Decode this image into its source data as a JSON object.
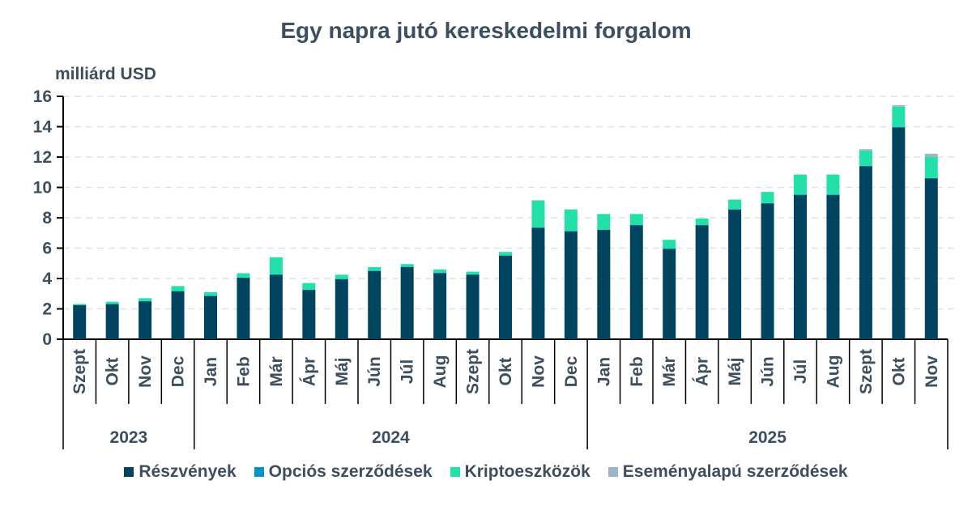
{
  "chart_data": {
    "type": "bar",
    "stacked": true,
    "title": "Egy napra jutó kereskedelmi forgalom",
    "ylabel": "milliárd USD",
    "ylim": [
      0,
      16
    ],
    "yticks": [
      0,
      2,
      4,
      6,
      8,
      10,
      12,
      14,
      16
    ],
    "grid": true,
    "legend_position": "bottom",
    "categories": [
      "Szept",
      "Okt",
      "Nov",
      "Dec",
      "Jan",
      "Feb",
      "Már",
      "Ápr",
      "Máj",
      "Jún",
      "Júl",
      "Aug",
      "Szept",
      "Okt",
      "Nov",
      "Dec",
      "Jan",
      "Feb",
      "Már",
      "Ápr",
      "Máj",
      "Jún",
      "Júl",
      "Aug",
      "Szept",
      "Okt",
      "Nov"
    ],
    "years": [
      {
        "label": "2023",
        "count": 4
      },
      {
        "label": "2024",
        "count": 12
      },
      {
        "label": "2025",
        "count": 11
      }
    ],
    "series": [
      {
        "name": "Részvények",
        "color": "#00445f",
        "values": [
          2.24,
          2.3,
          2.5,
          3.15,
          2.85,
          4.05,
          4.25,
          3.25,
          3.95,
          4.5,
          4.75,
          4.35,
          4.25,
          5.5,
          7.35,
          7.1,
          7.2,
          7.5,
          5.95,
          7.5,
          8.55,
          8.95,
          9.5,
          9.5,
          11.4,
          13.95,
          10.6
        ]
      },
      {
        "name": "Opciós szerződések",
        "color": "#0092c8",
        "values": [
          0.02,
          0.02,
          0.02,
          0.02,
          0.02,
          0.02,
          0.02,
          0.02,
          0.02,
          0.02,
          0.02,
          0.02,
          0.02,
          0.02,
          0.02,
          0.02,
          0.02,
          0.02,
          0.02,
          0.02,
          0.02,
          0.02,
          0.02,
          0.02,
          0.02,
          0.02,
          0.02
        ]
      },
      {
        "name": "Kriptoeszközök",
        "color": "#22e0a8",
        "values": [
          0.06,
          0.15,
          0.18,
          0.33,
          0.23,
          0.28,
          1.13,
          0.43,
          0.28,
          0.23,
          0.18,
          0.23,
          0.18,
          0.23,
          1.78,
          1.43,
          1.03,
          0.73,
          0.58,
          0.43,
          0.63,
          0.73,
          1.33,
          1.33,
          1.0,
          1.35,
          1.4
        ]
      },
      {
        "name": "Eseményalapú szerződések",
        "color": "#9db5c8",
        "values": [
          0,
          0,
          0,
          0,
          0,
          0,
          0,
          0,
          0,
          0,
          0,
          0,
          0,
          0,
          0,
          0,
          0,
          0,
          0,
          0,
          0,
          0,
          0,
          0,
          0.1,
          0.1,
          0.2
        ]
      }
    ]
  }
}
